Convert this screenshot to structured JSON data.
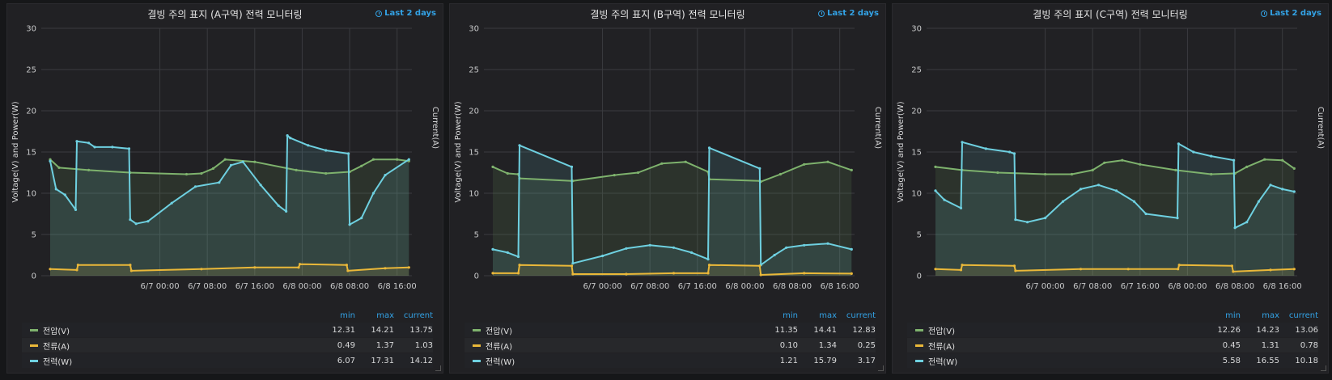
{
  "time_range": "Last 2 days",
  "panels": [
    {
      "title": "결빙 주의 표지 (A구역) 전력 모니터링",
      "legend_headers": [
        "min",
        "max",
        "current"
      ],
      "legend": [
        {
          "name": "전압(V)",
          "color": "#7eb26d",
          "min": "12.31",
          "max": "14.21",
          "current": "13.75"
        },
        {
          "name": "전류(A)",
          "color": "#eab839",
          "min": "0.49",
          "max": "1.37",
          "current": "1.03"
        },
        {
          "name": "전력(W)",
          "color": "#6ed0e0",
          "min": "6.07",
          "max": "17.31",
          "current": "14.12"
        }
      ]
    },
    {
      "title": "결빙 주의 표지 (B구역) 전력 모니터링",
      "legend_headers": [
        "min",
        "max",
        "current"
      ],
      "legend": [
        {
          "name": "전압(V)",
          "color": "#7eb26d",
          "min": "11.35",
          "max": "14.41",
          "current": "12.83"
        },
        {
          "name": "전류(A)",
          "color": "#eab839",
          "min": "0.10",
          "max": "1.34",
          "current": "0.25"
        },
        {
          "name": "전력(W)",
          "color": "#6ed0e0",
          "min": "1.21",
          "max": "15.79",
          "current": "3.17"
        }
      ]
    },
    {
      "title": "결빙 주의 표지 (C구역) 전력 모니터링",
      "legend_headers": [
        "min",
        "max",
        "current"
      ],
      "legend": [
        {
          "name": "전압(V)",
          "color": "#7eb26d",
          "min": "12.26",
          "max": "14.23",
          "current": "13.06"
        },
        {
          "name": "전류(A)",
          "color": "#eab839",
          "min": "0.45",
          "max": "1.31",
          "current": "0.78"
        },
        {
          "name": "전력(W)",
          "color": "#6ed0e0",
          "min": "5.58",
          "max": "16.55",
          "current": "10.18"
        }
      ]
    }
  ],
  "chart_data": [
    {
      "type": "line",
      "title": "결빙 주의 표지 (A구역) 전력 모니터링",
      "ylabel": "Voltage(V) and Power(W)",
      "y2label": "Current(A)",
      "ylim": [
        0,
        30
      ],
      "yticks": [
        "0",
        "5",
        "10",
        "15",
        "20",
        "25",
        "30"
      ],
      "x_domain_hours": [
        -20,
        42.5
      ],
      "xticks": [
        {
          "h": 0,
          "label": "6/7 00:00"
        },
        {
          "h": 8,
          "label": "6/7 08:00"
        },
        {
          "h": 16,
          "label": "6/7 16:00"
        },
        {
          "h": 24,
          "label": "6/8 00:00"
        },
        {
          "h": 32,
          "label": "6/8 08:00"
        },
        {
          "h": 40,
          "label": "6/8 16:00"
        }
      ],
      "grid": true,
      "series": [
        {
          "name": "전압(V)",
          "color": "#7eb26d",
          "x": [
            -18.5,
            -17,
            -12,
            -5,
            4.5,
            7,
            9,
            11,
            16,
            23,
            28,
            32,
            34,
            36,
            40,
            42
          ],
          "y": [
            14.1,
            13.1,
            12.8,
            12.5,
            12.3,
            12.4,
            13.0,
            14.1,
            13.8,
            12.8,
            12.4,
            12.6,
            13.3,
            14.1,
            14.1,
            13.9
          ]
        },
        {
          "name": "전류(A)",
          "color": "#eab839",
          "x": [
            -18.5,
            -14,
            -13.8,
            -5,
            -4.8,
            7,
            16,
            23.4,
            23.6,
            31.5,
            31.7,
            38,
            42
          ],
          "y": [
            0.8,
            0.7,
            1.3,
            1.3,
            0.6,
            0.8,
            1.0,
            1.0,
            1.4,
            1.3,
            0.6,
            0.9,
            1.0
          ]
        },
        {
          "name": "전력(W)",
          "color": "#6ed0e0",
          "x": [
            -18.5,
            -17.5,
            -16,
            -14.2,
            -14,
            -12,
            -11,
            -8,
            -5.2,
            -5,
            -4,
            -2,
            2,
            6,
            10,
            12,
            14,
            17,
            20,
            21.3,
            21.5,
            22,
            25,
            28,
            31.8,
            32,
            34,
            36,
            38,
            42
          ],
          "y": [
            13.9,
            10.5,
            9.8,
            8.0,
            16.3,
            16.1,
            15.6,
            15.6,
            15.4,
            6.8,
            6.3,
            6.6,
            8.8,
            10.8,
            11.3,
            13.4,
            13.8,
            11.0,
            8.5,
            7.8,
            17.0,
            16.7,
            15.8,
            15.2,
            14.8,
            6.2,
            7.0,
            10.0,
            12.2,
            14.1
          ]
        }
      ]
    },
    {
      "type": "line",
      "title": "결빙 주의 표지 (B구역) 전력 모니터링",
      "ylabel": "Voltage(V) and Power(W)",
      "y2label": "Current(A)",
      "ylim": [
        0,
        30
      ],
      "yticks": [
        "0",
        "5",
        "10",
        "15",
        "20",
        "25",
        "30"
      ],
      "x_domain_hours": [
        -20,
        42.5
      ],
      "xticks": [
        {
          "h": 0,
          "label": "6/7 00:00"
        },
        {
          "h": 8,
          "label": "6/7 08:00"
        },
        {
          "h": 16,
          "label": "6/7 16:00"
        },
        {
          "h": 24,
          "label": "6/8 00:00"
        },
        {
          "h": 32,
          "label": "6/8 08:00"
        },
        {
          "h": 40,
          "label": "6/8 16:00"
        }
      ],
      "grid": true,
      "series": [
        {
          "name": "전압(V)",
          "color": "#7eb26d",
          "x": [
            -18.5,
            -16,
            -14.2,
            -14,
            -5.2,
            -5,
            2,
            6,
            10,
            14,
            17.8,
            18,
            26.5,
            26.7,
            30,
            34,
            38,
            42
          ],
          "y": [
            13.2,
            12.4,
            12.3,
            11.8,
            11.5,
            11.5,
            12.2,
            12.5,
            13.6,
            13.8,
            12.6,
            11.7,
            11.5,
            11.4,
            12.3,
            13.5,
            13.8,
            12.8
          ]
        },
        {
          "name": "전류(A)",
          "color": "#eab839",
          "x": [
            -18.5,
            -14.2,
            -14,
            -5.2,
            -5,
            4,
            12,
            17.8,
            18,
            26.5,
            26.7,
            34,
            42
          ],
          "y": [
            0.3,
            0.3,
            1.3,
            1.2,
            0.2,
            0.2,
            0.3,
            0.3,
            1.3,
            1.2,
            0.1,
            0.3,
            0.25
          ]
        },
        {
          "name": "전력(W)",
          "color": "#6ed0e0",
          "x": [
            -18.5,
            -16,
            -14.2,
            -14,
            -5.2,
            -5,
            0,
            4,
            8,
            12,
            15,
            17.8,
            18,
            26.5,
            26.7,
            29,
            31,
            34,
            38,
            42
          ],
          "y": [
            3.2,
            2.8,
            2.3,
            15.8,
            13.2,
            1.5,
            2.4,
            3.3,
            3.7,
            3.4,
            2.8,
            2.0,
            15.5,
            13.0,
            1.3,
            2.5,
            3.4,
            3.7,
            3.9,
            3.2
          ]
        }
      ]
    },
    {
      "type": "line",
      "title": "결빙 주의 표지 (C구역) 전력 모니터링",
      "ylabel": "Voltage(V) and Power(W)",
      "y2label": "Current(A)",
      "ylim": [
        0,
        30
      ],
      "yticks": [
        "0",
        "5",
        "10",
        "15",
        "20",
        "25",
        "30"
      ],
      "x_domain_hours": [
        -20,
        42.5
      ],
      "xticks": [
        {
          "h": 0,
          "label": "6/7 00:00"
        },
        {
          "h": 8,
          "label": "6/7 08:00"
        },
        {
          "h": 16,
          "label": "6/7 16:00"
        },
        {
          "h": 24,
          "label": "6/8 00:00"
        },
        {
          "h": 32,
          "label": "6/8 08:00"
        },
        {
          "h": 40,
          "label": "6/8 16:00"
        }
      ],
      "grid": true,
      "series": [
        {
          "name": "전압(V)",
          "color": "#7eb26d",
          "x": [
            -18.5,
            -14,
            -8,
            0,
            4.5,
            8,
            10,
            13,
            16,
            22,
            28,
            32,
            34,
            37,
            40,
            42
          ],
          "y": [
            13.2,
            12.8,
            12.5,
            12.3,
            12.3,
            12.8,
            13.7,
            14.0,
            13.5,
            12.8,
            12.3,
            12.4,
            13.2,
            14.1,
            14.0,
            13.0
          ]
        },
        {
          "name": "전류(A)",
          "color": "#eab839",
          "x": [
            -18.5,
            -14.2,
            -14,
            -5.2,
            -5,
            6,
            14,
            22.4,
            22.6,
            31.5,
            31.7,
            38,
            42
          ],
          "y": [
            0.8,
            0.7,
            1.3,
            1.2,
            0.6,
            0.8,
            0.8,
            0.8,
            1.3,
            1.2,
            0.5,
            0.7,
            0.8
          ]
        },
        {
          "name": "전력(W)",
          "color": "#6ed0e0",
          "x": [
            -18.5,
            -17,
            -14.2,
            -14,
            -10,
            -6,
            -5.2,
            -5,
            -3,
            0,
            3,
            6,
            9,
            12,
            15,
            17,
            22.3,
            22.5,
            25,
            28,
            31.8,
            32,
            34,
            36,
            38,
            40,
            42
          ],
          "y": [
            10.3,
            9.2,
            8.2,
            16.2,
            15.4,
            15.0,
            14.8,
            6.8,
            6.5,
            7.0,
            9.0,
            10.5,
            11.0,
            10.3,
            9.0,
            7.5,
            7.0,
            16.0,
            15.0,
            14.5,
            14.0,
            5.8,
            6.5,
            9.0,
            11.0,
            10.5,
            10.2
          ]
        }
      ]
    }
  ]
}
